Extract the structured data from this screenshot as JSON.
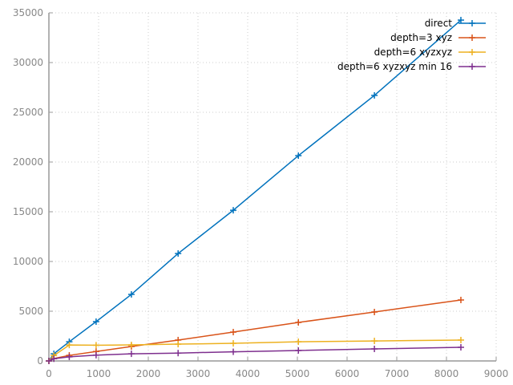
{
  "chart_data": {
    "type": "line",
    "title": "",
    "xlabel": "",
    "ylabel": "",
    "xlim": [
      0,
      9000
    ],
    "ylim": [
      0,
      35000
    ],
    "xticks": [
      0,
      1000,
      2000,
      3000,
      4000,
      5000,
      6000,
      7000,
      8000,
      9000
    ],
    "yticks": [
      0,
      5000,
      10000,
      15000,
      20000,
      25000,
      30000,
      35000
    ],
    "grid": true,
    "legend_position": "top-right",
    "x": [
      0,
      100,
      410,
      950,
      1660,
      2600,
      3710,
      5020,
      6550,
      8290
    ],
    "series": [
      {
        "name": "direct",
        "color": "#0072bd",
        "values": [
          0,
          720,
          1930,
          3950,
          6690,
          10800,
          15150,
          20640,
          26700,
          34270
        ]
      },
      {
        "name": "depth=3 xyz",
        "color": "#d95319",
        "values": [
          0,
          240,
          560,
          950,
          1450,
          2100,
          2900,
          3870,
          4920,
          6130
        ]
      },
      {
        "name": "depth=6 xyzxyz",
        "color": "#edb120",
        "values": [
          0,
          540,
          1600,
          1580,
          1610,
          1690,
          1770,
          1930,
          2010,
          2100
        ]
      },
      {
        "name": "depth=6 xyzxyz min 16",
        "color": "#7e2f8e",
        "values": [
          0,
          220,
          410,
          580,
          720,
          790,
          920,
          1050,
          1210,
          1370
        ]
      }
    ]
  }
}
